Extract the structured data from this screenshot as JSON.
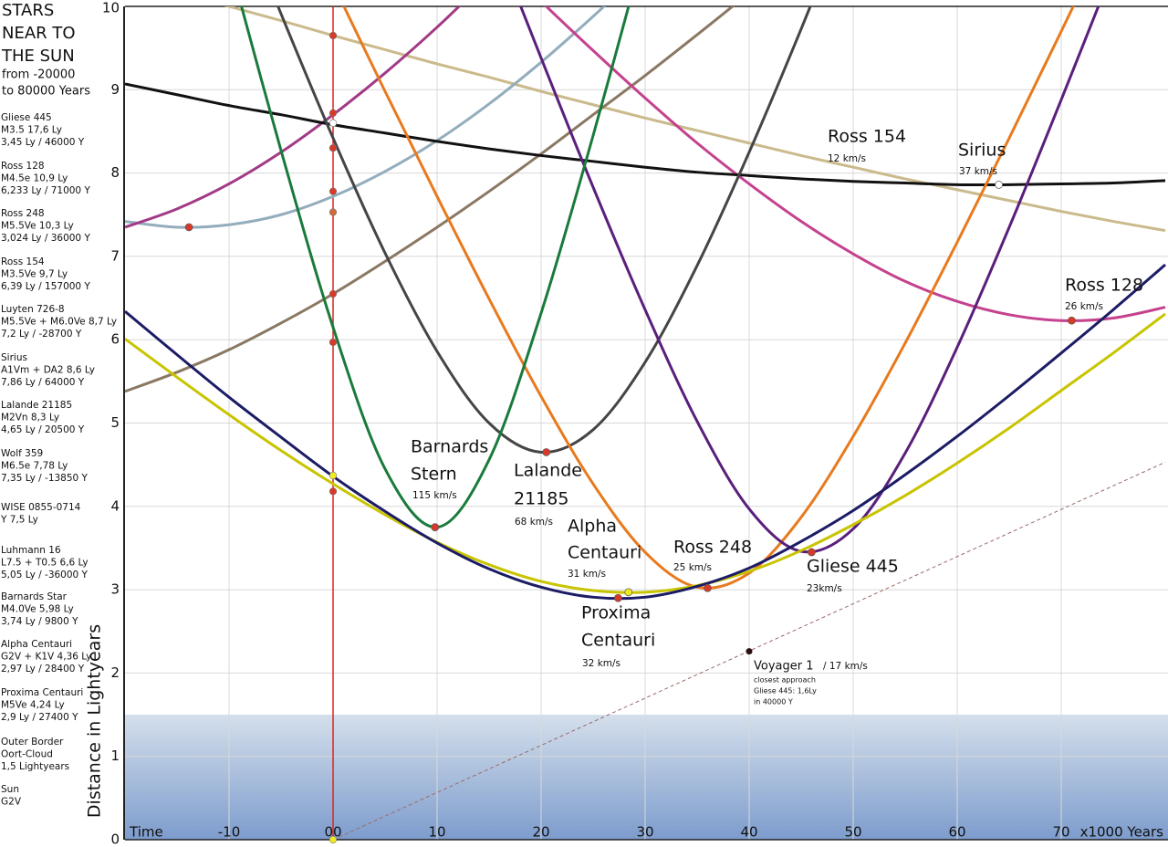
{
  "chart_data": {
    "type": "line",
    "title_lines": [
      "STARS",
      "NEAR TO",
      "THE SUN"
    ],
    "subtitle_lines": [
      "from -20000",
      "to 80000 Years"
    ],
    "y_label": "Distance in Lightyears",
    "xlim": [
      -20,
      80
    ],
    "ylim": [
      0,
      10
    ],
    "xticks": [
      {
        "value": -20,
        "label": "Time"
      },
      -10,
      {
        "value": 0,
        "label": "00"
      },
      10,
      20,
      30,
      40,
      50,
      60,
      70,
      {
        "value": 80,
        "label": "x1000 Years"
      }
    ],
    "yticks": [
      0,
      1,
      2,
      3,
      4,
      5,
      6,
      7,
      8,
      9,
      10
    ],
    "grid": true,
    "x": [
      -20,
      -15,
      -10,
      -5,
      0,
      5,
      10,
      15,
      20,
      25,
      30,
      35,
      40,
      45,
      50,
      55,
      60,
      65,
      70,
      75,
      80
    ],
    "oort_cloud": [
      0,
      1.5
    ],
    "series": [
      {
        "color": "#caba8c",
        "values": [
          null,
          10.18,
          10.0,
          9.83,
          9.65,
          9.48,
          9.31,
          9.15,
          8.98,
          8.82,
          8.66,
          8.51,
          8.36,
          8.21,
          8.07,
          7.93,
          7.8,
          7.67,
          7.54,
          7.42,
          7.31
        ]
      },
      {
        "color": "#8a7862",
        "values": [
          5.38,
          5.61,
          5.88,
          6.2,
          6.55,
          6.94,
          7.35,
          7.78,
          8.23,
          8.7,
          9.17,
          9.66,
          10.16,
          null,
          null,
          null,
          null,
          null,
          null,
          null,
          null
        ]
      },
      {
        "color": "#93adbd",
        "values": [
          7.42,
          7.35,
          7.38,
          7.5,
          7.72,
          8.02,
          8.39,
          8.83,
          9.33,
          9.88,
          10.46,
          null,
          null,
          null,
          null,
          null,
          null,
          null,
          null,
          null,
          null
        ],
        "closest": [
          -13.85,
          7.35
        ],
        "dot_color": "#d83a2a"
      },
      {
        "color": "#a23a86",
        "values": [
          7.35,
          7.57,
          7.87,
          8.25,
          8.7,
          9.2,
          9.75,
          10.35,
          null,
          null,
          null,
          null,
          null,
          null,
          null,
          null,
          null,
          null,
          null,
          null,
          null
        ]
      },
      {
        "color": "#c4428e",
        "values": [
          null,
          null,
          null,
          null,
          null,
          null,
          null,
          10.68,
          10.06,
          9.47,
          8.9,
          8.36,
          7.87,
          7.42,
          7.03,
          6.7,
          6.46,
          6.3,
          6.23,
          6.26,
          6.39
        ],
        "closest": [
          71,
          6.23
        ],
        "dot_color": "#d83a2a"
      },
      {
        "color": "#111111",
        "values": [
          9.07,
          8.94,
          8.81,
          8.7,
          8.58,
          8.48,
          8.38,
          8.29,
          8.21,
          8.14,
          8.07,
          8.01,
          7.97,
          7.93,
          7.9,
          7.88,
          7.86,
          7.86,
          7.87,
          7.88,
          7.91
        ],
        "closest": [
          64,
          7.86
        ],
        "dot_color": "#ffffff"
      },
      {
        "color": "#454545",
        "values": [
          null,
          null,
          11.46,
          9.91,
          8.42,
          7.04,
          5.86,
          5.0,
          4.65,
          4.92,
          5.73,
          6.89,
          8.25,
          9.73,
          11.28,
          null,
          null,
          null,
          null,
          null,
          null
        ],
        "closest": [
          20.5,
          4.65
        ],
        "dot_color": "#d83a2a"
      },
      {
        "color": "#e87a1e",
        "values": [
          null,
          null,
          null,
          null,
          10.27,
          8.98,
          7.72,
          6.49,
          5.32,
          4.27,
          3.45,
          3.03,
          3.2,
          3.87,
          4.84,
          5.96,
          7.17,
          8.42,
          9.7,
          11.0,
          null
        ],
        "closest": [
          36,
          3.02
        ],
        "dot_color": "#d83a2a"
      },
      {
        "color": "#5a1f7c",
        "values": [
          null,
          null,
          null,
          null,
          null,
          null,
          null,
          10.97,
          9.38,
          7.83,
          6.36,
          5.02,
          3.97,
          3.46,
          3.73,
          4.64,
          5.91,
          7.35,
          8.88,
          10.45,
          null
        ],
        "closest": [
          46,
          3.45
        ],
        "dot_color": "#d83a2a"
      },
      {
        "color": "#1a7a3c",
        "values": [
          null,
          null,
          10.55,
          8.27,
          6.15,
          4.45,
          3.75,
          4.56,
          6.32,
          8.45,
          10.73,
          null,
          null,
          null,
          null,
          null,
          null,
          null,
          null,
          null,
          null
        ],
        "closest": [
          9.8,
          3.75
        ],
        "dot_color": "#d83a2a"
      },
      {
        "color": "#c8c400",
        "values": [
          6.01,
          5.55,
          5.1,
          4.67,
          4.27,
          3.9,
          3.57,
          3.3,
          3.1,
          2.99,
          2.97,
          3.05,
          3.22,
          3.47,
          3.78,
          4.13,
          4.52,
          4.94,
          5.39,
          5.84,
          6.31
        ],
        "closest": [
          28.4,
          2.97
        ],
        "dot_color": "#f2ea20"
      },
      {
        "color": "#1c1c66",
        "values": [
          6.34,
          5.82,
          5.31,
          4.83,
          4.36,
          3.94,
          3.56,
          3.25,
          3.03,
          2.91,
          2.91,
          3.04,
          3.26,
          3.58,
          3.95,
          4.38,
          4.84,
          5.33,
          5.84,
          6.36,
          6.9
        ],
        "closest": [
          27.4,
          2.9
        ],
        "dot_color": "#d83a2a"
      }
    ],
    "voyager": {
      "x": [
        0,
        80
      ],
      "values": [
        0,
        4.53
      ],
      "color": "#9a6a6a",
      "marker": [
        40,
        2.26
      ]
    },
    "current": {
      "x": 0,
      "color": "#d8251e",
      "values": [
        9.65,
        8.72,
        8.6,
        8.3,
        7.78,
        7.53,
        6.55,
        5.97,
        4.37,
        4.18,
        0
      ],
      "colors": [
        "#d83a2a",
        "#d83a2a",
        "#ffffff",
        "#d83a2a",
        "#d83a2a",
        "#d2693a",
        "#d83a2a",
        "#d83a2a",
        "#f2ea20",
        "#d83a2a",
        "#f2ea20"
      ]
    },
    "annotations": [
      "Ross 154",
      "12 km/s",
      "Sirius",
      "37 km/s",
      "Ross 128",
      "26 km/s",
      "Barnards",
      "Stern",
      "115 km/s",
      "Lalande",
      "21185",
      "68 km/s",
      "Alpha",
      "Centauri",
      "31 km/s",
      "Ross 248",
      "25 km/s",
      "Gliese 445",
      "23km/s",
      "Proxima",
      "Centauri",
      "32 km/s",
      "Voyager 1",
      "/ 17 km/s",
      "closest approach",
      "Gliese 445: 1,6Ly",
      "in 40000 Y"
    ],
    "sidebar": [
      [
        "Gliese 445",
        "M3.5 17,6 Ly",
        "3,45 Ly / 46000 Y"
      ],
      [
        "Ross 128",
        "M4.5e 10,9 Ly",
        "6,233 Ly / 71000 Y"
      ],
      [
        "Ross 248",
        "M5.5Ve 10,3 Ly",
        "3,024 Ly / 36000 Y"
      ],
      [
        "Ross 154",
        "M3.5Ve 9,7 Ly",
        "6,39 Ly / 157000 Y"
      ],
      [
        "Luyten 726-8",
        "M5.5Ve + M6.0Ve 8,7 Ly",
        "7,2 Ly / -28700 Y"
      ],
      [
        "Sirius",
        "A1Vm + DA2 8,6 Ly",
        "7,86 Ly / 64000 Y"
      ],
      [
        "Lalande 21185",
        "M2Vn 8,3 Ly",
        "4,65 Ly / 20500 Y"
      ],
      [
        "Wolf 359",
        "M6.5e 7,78 Ly",
        "7,35 Ly / -13850 Y"
      ],
      [
        "WISE 0855-0714",
        "Y 7,5 Ly"
      ],
      [
        "Luhmann 16",
        "L7.5 + T0.5 6,6 Ly",
        "5,05 Ly / -36000 Y"
      ],
      [
        "Barnards Star",
        "M4.0Ve 5,98 Ly",
        "3,74 Ly / 9800 Y"
      ],
      [
        "Alpha Centauri",
        "G2V + K1V 4,36 Ly",
        "2,97 Ly / 28400 Y"
      ],
      [
        "Proxima Centauri",
        "M5Ve 4,24 Ly",
        "2,9 Ly / 27400 Y"
      ],
      [
        "Outer Border",
        "Oort-Cloud",
        "1,5 Lightyears"
      ],
      [
        "Sun",
        "G2V"
      ]
    ]
  }
}
